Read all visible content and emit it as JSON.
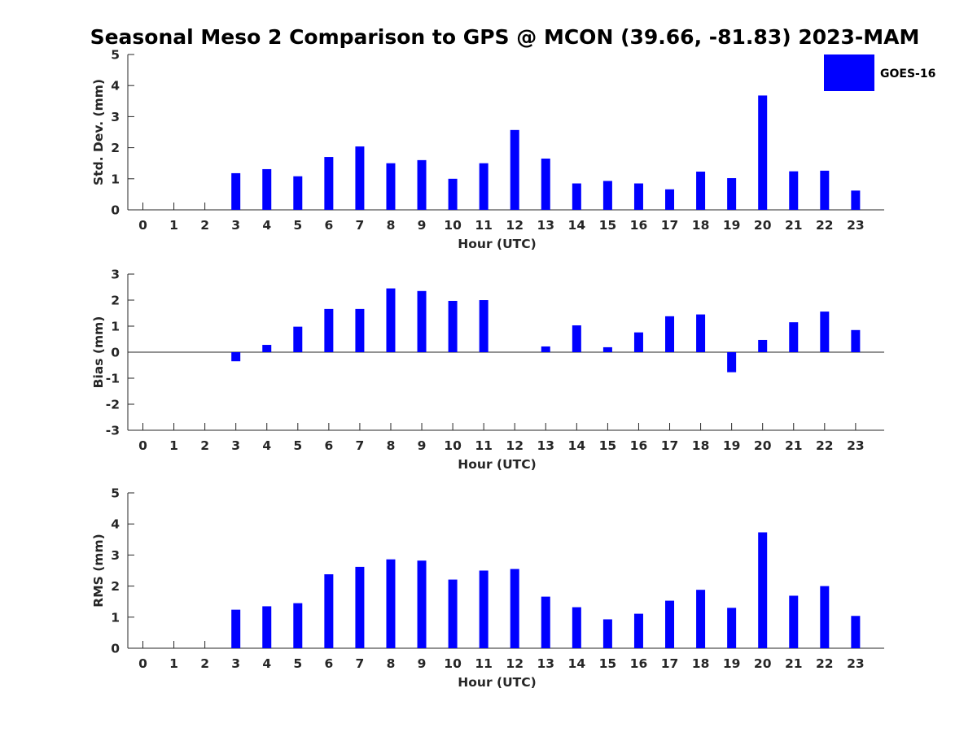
{
  "title": "Seasonal Meso 2 Comparison to GPS @ MCON (39.66, -81.83) 2023-MAM",
  "legend": {
    "label": "GOES-16",
    "color": "#0000ff"
  },
  "chart_data": [
    {
      "type": "bar",
      "name": "std-dev",
      "xlabel": "Hour (UTC)",
      "ylabel": "Std. Dev. (mm)",
      "ylim": [
        0,
        5
      ],
      "yticks": [
        "0",
        "1",
        "2",
        "3",
        "4",
        "5"
      ],
      "categories": [
        "0",
        "1",
        "2",
        "3",
        "4",
        "5",
        "6",
        "7",
        "8",
        "9",
        "10",
        "11",
        "12",
        "13",
        "14",
        "15",
        "16",
        "17",
        "18",
        "19",
        "20",
        "21",
        "22",
        "23"
      ],
      "series": [
        {
          "name": "GOES-16",
          "values": [
            null,
            null,
            null,
            1.18,
            1.31,
            1.08,
            1.7,
            2.04,
            1.5,
            1.6,
            1.0,
            1.5,
            2.57,
            1.65,
            0.85,
            0.93,
            0.85,
            0.66,
            1.23,
            1.02,
            3.68,
            1.24,
            1.26,
            0.62
          ]
        }
      ]
    },
    {
      "type": "bar",
      "name": "bias",
      "xlabel": "Hour (UTC)",
      "ylabel": "Bias (mm)",
      "ylim": [
        -3,
        3
      ],
      "yticks": [
        "-3",
        "-2",
        "-1",
        "0",
        "1",
        "2",
        "3"
      ],
      "categories": [
        "0",
        "1",
        "2",
        "3",
        "4",
        "5",
        "6",
        "7",
        "8",
        "9",
        "10",
        "11",
        "12",
        "13",
        "14",
        "15",
        "16",
        "17",
        "18",
        "19",
        "20",
        "21",
        "22",
        "23"
      ],
      "series": [
        {
          "name": "GOES-16",
          "values": [
            null,
            null,
            null,
            -0.35,
            0.28,
            0.98,
            1.66,
            1.66,
            2.45,
            2.35,
            1.97,
            2.0,
            0,
            0.22,
            1.03,
            0.19,
            0.76,
            1.38,
            1.45,
            -0.77,
            0.47,
            1.15,
            1.56,
            0.85
          ]
        }
      ]
    },
    {
      "type": "bar",
      "name": "rms",
      "xlabel": "Hour (UTC)",
      "ylabel": "RMS (mm)",
      "ylim": [
        0,
        5
      ],
      "yticks": [
        "0",
        "1",
        "2",
        "3",
        "4",
        "5"
      ],
      "categories": [
        "0",
        "1",
        "2",
        "3",
        "4",
        "5",
        "6",
        "7",
        "8",
        "9",
        "10",
        "11",
        "12",
        "13",
        "14",
        "15",
        "16",
        "17",
        "18",
        "19",
        "20",
        "21",
        "22",
        "23"
      ],
      "series": [
        {
          "name": "GOES-16",
          "values": [
            null,
            null,
            null,
            1.24,
            1.35,
            1.45,
            2.38,
            2.62,
            2.86,
            2.82,
            2.21,
            2.5,
            2.55,
            1.66,
            1.32,
            0.93,
            1.11,
            1.53,
            1.88,
            1.3,
            3.73,
            1.69,
            2.0,
            1.04
          ]
        }
      ]
    }
  ]
}
